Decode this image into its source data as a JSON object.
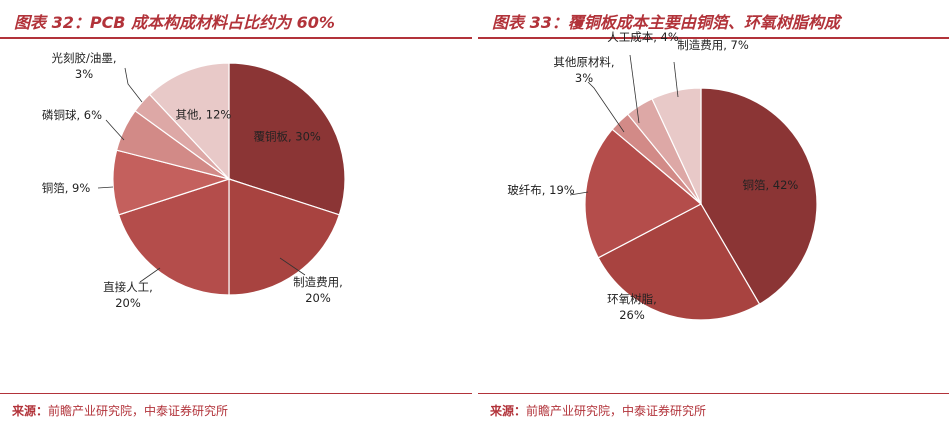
{
  "colors": {
    "accent": "#b2333a",
    "palette": [
      "#8b3535",
      "#a84340",
      "#b44d4b",
      "#c4605d",
      "#d28a87",
      "#dda8a6",
      "#e8c9c8"
    ]
  },
  "source_label": "来源：",
  "source_text": "前瞻产业研究院，中泰证券研究所",
  "chart_data": [
    {
      "type": "pie",
      "title": "图表 32：PCB 成本构成材料占比约为 60%",
      "slices": [
        {
          "name": "覆铜板",
          "value": 30,
          "label": "覆铜板, 30%",
          "color": "#8b3535"
        },
        {
          "name": "制造费用",
          "value": 20,
          "label": "制造费用,",
          "label2": "20%",
          "color": "#a84340"
        },
        {
          "name": "直接人工",
          "value": 20,
          "label": "直接人工,",
          "label2": "20%",
          "color": "#b44d4b"
        },
        {
          "name": "铜箔",
          "value": 9,
          "label": "铜箔, 9%",
          "color": "#c4605d"
        },
        {
          "name": "磷铜球",
          "value": 6,
          "label": "磷铜球, 6%",
          "color": "#d28a87"
        },
        {
          "name": "光刻胶/油墨",
          "value": 3,
          "label": "光刻胶/油墨,",
          "label2": "3%",
          "color": "#dda8a6"
        },
        {
          "name": "其他",
          "value": 12,
          "label": "其他, 12%",
          "color": "#e8c9c8"
        }
      ]
    },
    {
      "type": "pie",
      "title": "图表 33：覆铜板成本主要由铜箔、环氧树脂构成",
      "slices": [
        {
          "name": "铜箔",
          "value": 42,
          "label": "铜箔, 42%",
          "color": "#8b3535"
        },
        {
          "name": "环氧树脂",
          "value": 26,
          "label": "环氧树脂,",
          "label2": "26%",
          "color": "#a84340"
        },
        {
          "name": "玻纤布",
          "value": 19,
          "label": "玻纤布, 19%",
          "color": "#b44d4b"
        },
        {
          "name": "其他原材料",
          "value": 3,
          "label": "其他原材料,",
          "label2": "3%",
          "color": "#d28a87"
        },
        {
          "name": "人工成本",
          "value": 4,
          "label": "人工成本, 4%",
          "color": "#dda8a6"
        },
        {
          "name": "制造费用",
          "value": 7,
          "label": "制造费用, 7%",
          "color": "#e8c9c8"
        }
      ]
    }
  ]
}
